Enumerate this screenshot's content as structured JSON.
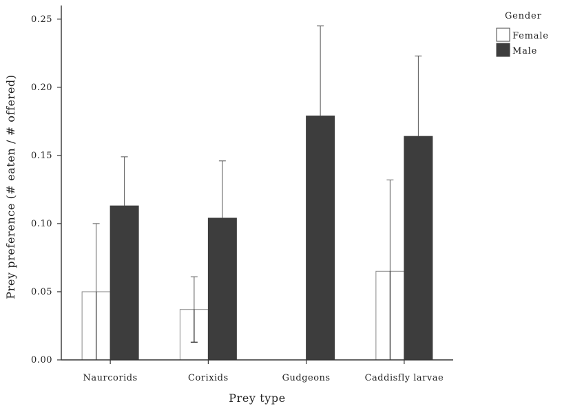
{
  "chart_data": {
    "type": "bar",
    "title": "",
    "xlabel": "Prey type",
    "ylabel": "Prey preference (# eaten / # offered)",
    "categories": [
      "Naurcorids",
      "Corixids",
      "Gudgeons",
      "Caddisfly larvae"
    ],
    "ylim": [
      0,
      0.26
    ],
    "yticks": [
      "0.00",
      "0.05",
      "0.10",
      "0.15",
      "0.20",
      "0.25"
    ],
    "grid": false,
    "legend_position": "top-right",
    "legend_title": "Gender",
    "series": [
      {
        "name": "Female",
        "color": "#ffffff",
        "values": [
          0.05,
          0.037,
          0.0,
          0.065
        ],
        "error_upper": [
          0.1,
          0.061,
          0.0,
          0.132
        ],
        "error_lower": [
          0.0,
          0.013,
          0.0,
          0.0
        ]
      },
      {
        "name": "Male",
        "color": "#3d3d3d",
        "values": [
          0.113,
          0.104,
          0.179,
          0.164
        ],
        "error_upper": [
          0.149,
          0.146,
          0.245,
          0.223
        ]
      }
    ]
  }
}
